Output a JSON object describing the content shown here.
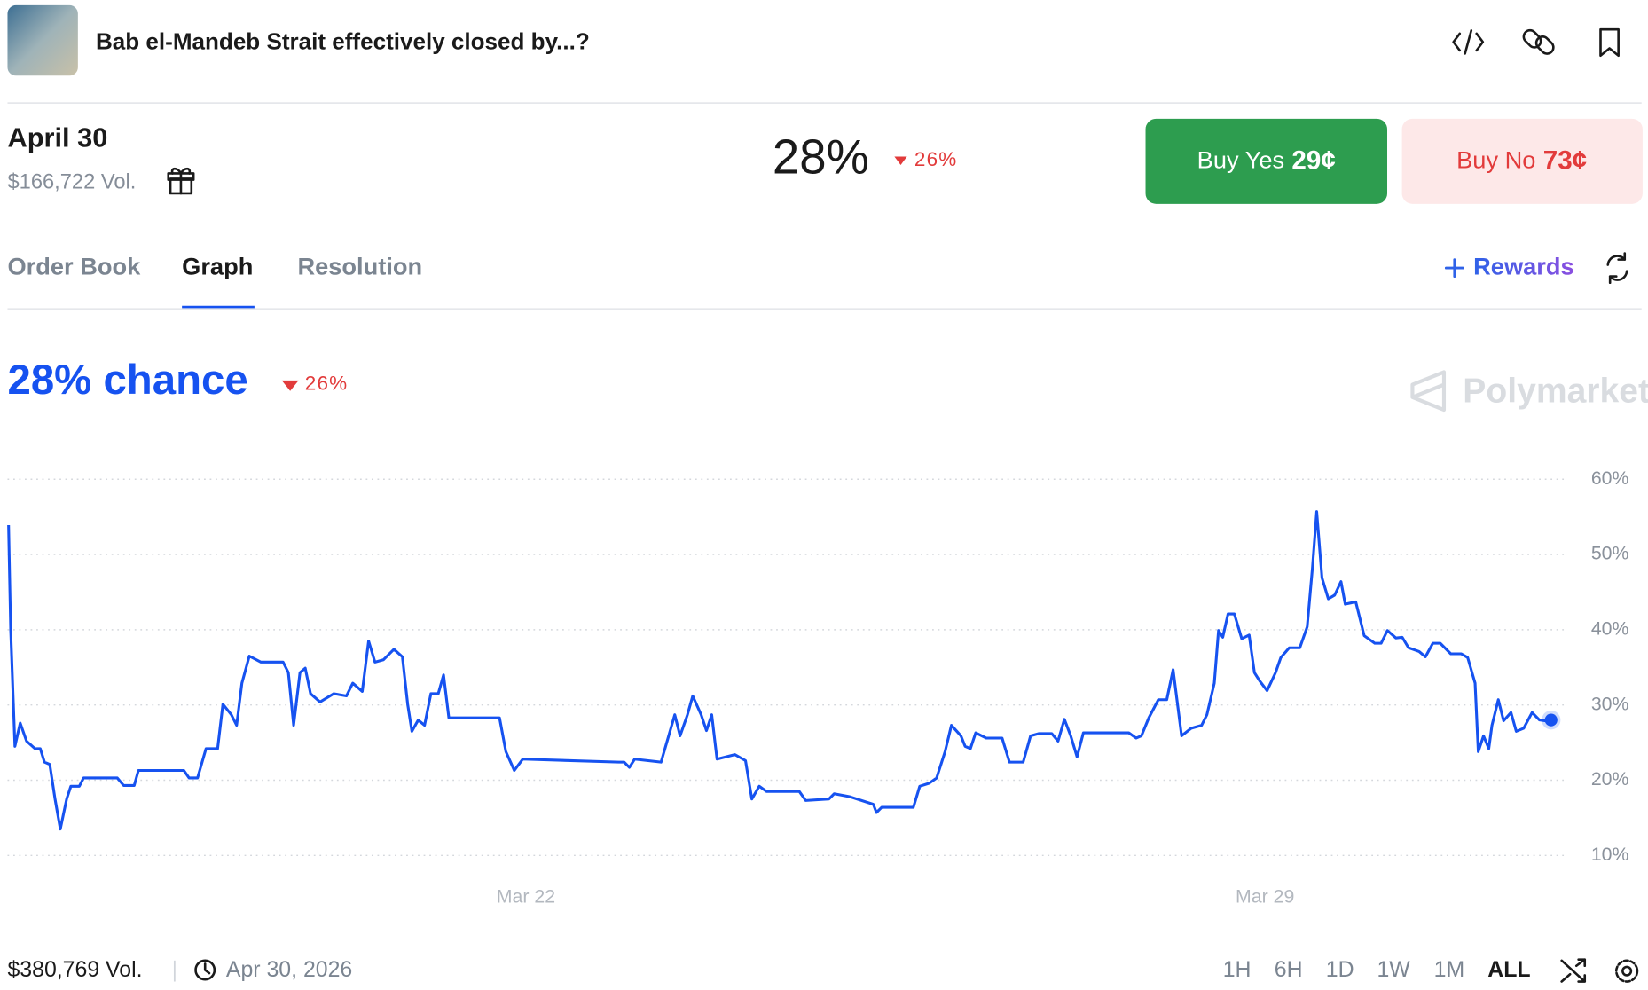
{
  "header": {
    "title": "Bab el-Mandeb Strait effectively closed by...?"
  },
  "market": {
    "label": "April 30",
    "volume": "$166,722 Vol.",
    "price": "28%",
    "change": "26%"
  },
  "buttons": {
    "buy_yes": "Buy Yes",
    "yes_price": "29¢",
    "buy_no": "Buy No",
    "no_price": "73¢"
  },
  "tabs": [
    "Order Book",
    "Graph",
    "Resolution"
  ],
  "rewards": "Rewards",
  "chart_data": {
    "type": "line",
    "title": "28% chance",
    "change": "26%",
    "watermark": "Polymarket",
    "x": [
      17.1,
      17.12,
      17.16,
      17.21,
      17.27,
      17.35,
      17.4,
      17.44,
      17.49,
      17.54,
      17.59,
      17.65,
      17.69,
      17.77,
      17.81,
      18.13,
      18.19,
      18.29,
      18.33,
      18.76,
      18.81,
      18.89,
      18.97,
      19.08,
      19.13,
      19.21,
      19.26,
      19.31,
      19.38,
      19.49,
      19.7,
      19.75,
      19.8,
      19.86,
      19.91,
      19.96,
      20.05,
      20.18,
      20.3,
      20.36,
      20.45,
      20.51,
      20.57,
      20.65,
      20.75,
      20.83,
      20.88,
      20.92,
      20.98,
      21.04,
      21.1,
      21.17,
      21.22,
      21.27,
      21.75,
      21.81,
      21.89,
      21.97,
      22.88,
      22.93,
      22.98,
      23.03,
      23.28,
      23.41,
      23.46,
      23.53,
      23.58,
      23.66,
      23.71,
      23.76,
      23.81,
      23.98,
      24.08,
      24.14,
      24.21,
      24.28,
      24.59,
      24.65,
      24.87,
      24.92,
      25.07,
      25.29,
      25.32,
      25.37,
      25.67,
      25.73,
      25.82,
      25.89,
      25.97,
      26.03,
      26.12,
      26.16,
      26.21,
      26.26,
      26.36,
      26.51,
      26.58,
      26.71,
      26.78,
      26.86,
      26.98,
      27.04,
      27.1,
      27.16,
      27.22,
      27.28,
      27.71,
      27.78,
      27.83,
      27.9,
      27.99,
      28.07,
      28.13,
      28.21,
      28.3,
      28.4,
      28.45,
      28.52,
      28.56,
      28.6,
      28.65,
      28.71,
      28.78,
      28.85,
      28.9,
      28.95,
      29.02,
      29.1,
      29.15,
      29.23,
      29.33,
      29.4,
      29.45,
      29.49,
      29.54,
      29.6,
      29.66,
      29.72,
      29.76,
      29.86,
      29.94,
      30.04,
      30.1,
      30.16,
      30.24,
      30.3,
      30.36,
      30.46,
      30.52,
      30.59,
      30.66,
      30.76,
      30.86,
      30.92,
      30.99,
      31.02,
      31.07,
      31.12,
      31.15,
      31.21,
      31.26,
      31.33,
      31.38,
      31.45,
      31.53,
      31.6,
      31.65,
      31.71
    ],
    "series": [
      {
        "color": "#1652f0",
        "values": [
          53.9,
          39.9,
          24.5,
          27.6,
          25.2,
          24.2,
          24.2,
          22.4,
          22.1,
          17.5,
          13.5,
          17.5,
          19.2,
          19.2,
          20.3,
          20.3,
          19.3,
          19.3,
          21.3,
          21.3,
          20.3,
          20.3,
          24.2,
          24.2,
          30.1,
          28.7,
          27.3,
          32.9,
          36.5,
          35.7,
          35.7,
          34.3,
          27.3,
          34.3,
          34.9,
          31.5,
          30.4,
          31.5,
          31.2,
          32.9,
          31.8,
          38.5,
          35.7,
          36.0,
          37.4,
          36.4,
          30.1,
          26.5,
          28.0,
          27.3,
          31.5,
          31.5,
          34.0,
          28.3,
          28.3,
          23.8,
          21.3,
          22.8,
          22.4,
          22.4,
          21.7,
          22.8,
          22.4,
          28.7,
          25.9,
          28.7,
          31.2,
          28.7,
          26.6,
          28.7,
          22.8,
          23.4,
          22.6,
          17.5,
          19.2,
          18.5,
          18.5,
          17.3,
          17.5,
          18.2,
          17.8,
          16.8,
          15.7,
          16.4,
          16.4,
          19.2,
          19.6,
          20.3,
          23.8,
          27.3,
          25.9,
          24.5,
          24.2,
          26.3,
          25.6,
          25.6,
          22.4,
          22.4,
          25.9,
          26.2,
          26.2,
          25.2,
          28.1,
          25.9,
          23.1,
          26.3,
          26.3,
          25.6,
          25.9,
          28.3,
          30.7,
          30.7,
          34.7,
          25.9,
          26.9,
          27.3,
          28.7,
          32.9,
          39.9,
          39.0,
          42.1,
          42.1,
          38.8,
          39.3,
          34.3,
          33.2,
          31.9,
          34.3,
          36.3,
          37.6,
          37.6,
          40.4,
          48.3,
          55.7,
          46.9,
          44.1,
          44.6,
          46.4,
          43.4,
          43.7,
          39.2,
          38.2,
          38.2,
          39.9,
          38.9,
          39.0,
          37.6,
          37.1,
          36.4,
          38.2,
          38.2,
          36.8,
          36.8,
          36.3,
          32.9,
          23.8,
          25.9,
          24.2,
          27.3,
          30.7,
          27.9,
          29.0,
          26.5,
          26.9,
          29.0,
          28.0,
          27.9,
          28
        ]
      }
    ],
    "xlim": [
      17.1,
      31.85
    ],
    "xticks": [
      {
        "value": 22,
        "label": "Mar 22"
      },
      {
        "value": 29,
        "label": "Mar 29"
      }
    ],
    "ylim": [
      6,
      62
    ],
    "yticks": [
      {
        "value": 10,
        "label": "10%"
      },
      {
        "value": 20,
        "label": "20%"
      },
      {
        "value": 30,
        "label": "30%"
      },
      {
        "value": 40,
        "label": "40%"
      },
      {
        "value": 50,
        "label": "50%"
      },
      {
        "value": 60,
        "label": "60%"
      }
    ],
    "grid": true
  },
  "footer": {
    "volume": "$380,769 Vol.",
    "end_date": "Apr 30, 2026",
    "ranges": [
      "1H",
      "6H",
      "1D",
      "1W",
      "1M",
      "ALL"
    ]
  }
}
